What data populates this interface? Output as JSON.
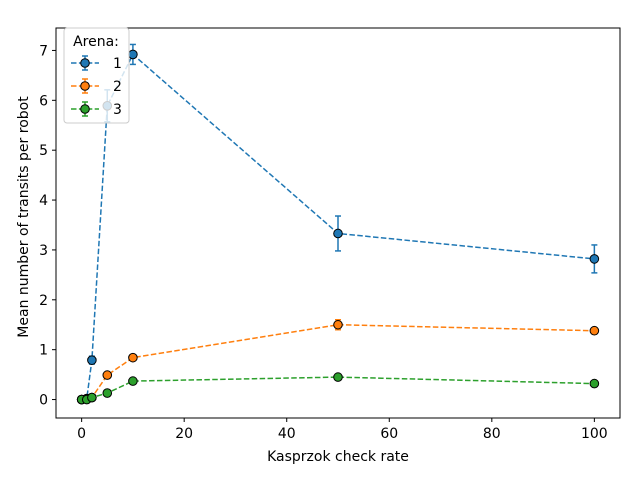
{
  "chart_data": {
    "type": "line",
    "xlabel": "Kasprzok check rate",
    "ylabel": "Mean number of transits per robot",
    "xlim": [
      -5,
      105
    ],
    "ylim": [
      -0.37,
      7.45
    ],
    "xticks": [
      0,
      20,
      40,
      60,
      80,
      100
    ],
    "yticks": [
      0,
      1,
      2,
      3,
      4,
      5,
      6,
      7
    ],
    "legend": {
      "title": "Arena:",
      "placement": "top-left"
    },
    "grid": false,
    "series": [
      {
        "name": "1",
        "color": "#1f77b4",
        "x": [
          0,
          1,
          2,
          5,
          10,
          50,
          100
        ],
        "y": [
          0.0,
          0.02,
          0.79,
          5.89,
          6.92,
          3.33,
          2.82
        ],
        "err": [
          0.0,
          0.02,
          0.08,
          0.32,
          0.2,
          0.35,
          0.28
        ]
      },
      {
        "name": "2",
        "color": "#ff7f0e",
        "x": [
          0,
          1,
          2,
          5,
          10,
          50,
          100
        ],
        "y": [
          0.0,
          0.01,
          0.04,
          0.49,
          0.84,
          1.5,
          1.38
        ],
        "err": [
          0.0,
          0.01,
          0.02,
          0.05,
          0.05,
          0.1,
          0.05
        ]
      },
      {
        "name": "3",
        "color": "#2ca02c",
        "x": [
          0,
          1,
          2,
          5,
          10,
          50,
          100
        ],
        "y": [
          0.0,
          0.0,
          0.04,
          0.13,
          0.37,
          0.45,
          0.32
        ],
        "err": [
          0.0,
          0.0,
          0.01,
          0.03,
          0.04,
          0.04,
          0.03
        ]
      }
    ]
  }
}
